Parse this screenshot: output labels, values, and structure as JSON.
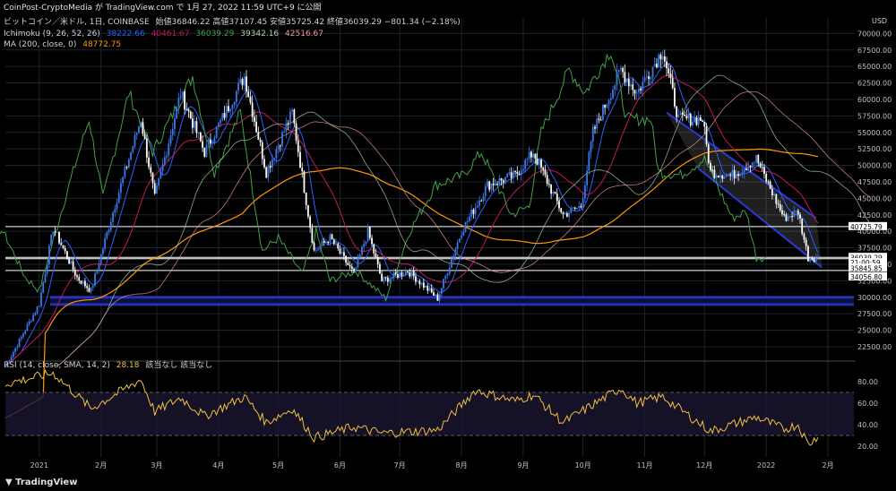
{
  "header": {
    "publisher": "CoinPost-CryptoMedia が TradingView.com で 1月 27, 2022 11:59 UTC+9 に公開"
  },
  "title": {
    "symbol": "ビットコイン／米ドル, 1日, COINBASE",
    "ohlc_label": "始値36846.22 高値37107.45 安値35725.42 終値36039.29 −801.34 (−2.18%)"
  },
  "indicators": {
    "ichimoku": {
      "label": "Ichimoku (9, 26, 52, 26)",
      "values": [
        "38222.66",
        "40461.67",
        "36039.29",
        "39342.16",
        "42516.67"
      ],
      "colors": [
        "#2962ff",
        "#c2185b",
        "#43a047",
        "#a5d6a7",
        "#ef9a9a"
      ]
    },
    "ma": {
      "label": "MA (200, close, 0)",
      "value": "48772.75",
      "color": "#ff9800"
    },
    "rsi": {
      "label": "RSI (14, close, SMA, 14, 2)",
      "value": "28.18",
      "extra": "該当なし  該当なし",
      "color": "#f0c040"
    }
  },
  "price_axis": {
    "currency": "USD",
    "ticks": [
      "70000.00",
      "67500.00",
      "65000.00",
      "62500.00",
      "60000.00",
      "57500.00",
      "55000.00",
      "52500.00",
      "50000.00",
      "47500.00",
      "45000.00",
      "42500.00",
      "40000.00",
      "37500.00",
      "35000.00",
      "32500.00",
      "30000.00",
      "27500.00",
      "25000.00",
      "22500.00"
    ],
    "labels": [
      {
        "text": "40725.79",
        "price": 40725.79,
        "bg": "#ffffff",
        "fg": "#000000"
      },
      {
        "text": "BTCUSD",
        "price": 36039.29,
        "bg": "#ffffff",
        "fg": "#000000"
      },
      {
        "text": "36039.29",
        "price": 36039.29,
        "bg": "#ffffff",
        "fg": "#000000"
      },
      {
        "text": "21:00:59",
        "price": 35250,
        "bg": "#ffffff",
        "fg": "#000000"
      },
      {
        "text": "35845.85",
        "price": 34400,
        "bg": "#ffffff",
        "fg": "#000000"
      },
      {
        "text": "34056.80",
        "price": 33100,
        "bg": "#ffffff",
        "fg": "#000000"
      }
    ]
  },
  "rsi_axis": {
    "ticks": [
      "80.00",
      "60.00",
      "40.00",
      "20.00"
    ]
  },
  "time_axis": {
    "labels": [
      "2021",
      "2月",
      "3月",
      "4月",
      "5月",
      "6月",
      "7月",
      "8月",
      "9月",
      "10月",
      "11月",
      "12月",
      "2022",
      "2月"
    ]
  },
  "footer": {
    "brand": "TradingView"
  },
  "chart_data": {
    "type": "candlestick",
    "timeframe": "1D",
    "ylim": [
      21000,
      71000
    ],
    "rsi_ylim": [
      10,
      95
    ],
    "x_labels": [
      "2021",
      "2月",
      "3月",
      "4月",
      "5月",
      "6月",
      "7月",
      "8月",
      "9月",
      "10月",
      "11月",
      "12月",
      "2022",
      "2月"
    ],
    "close_anchors": [
      {
        "x": "2020-12-15",
        "y": 19500
      },
      {
        "x": "2021-01-01",
        "y": 29000
      },
      {
        "x": "2021-01-08",
        "y": 40500
      },
      {
        "x": "2021-01-20",
        "y": 33000
      },
      {
        "x": "2021-01-27",
        "y": 31000
      },
      {
        "x": "2021-02-08",
        "y": 44000
      },
      {
        "x": "2021-02-21",
        "y": 57000
      },
      {
        "x": "2021-02-28",
        "y": 45000
      },
      {
        "x": "2021-03-13",
        "y": 61000
      },
      {
        "x": "2021-03-25",
        "y": 52000
      },
      {
        "x": "2021-04-14",
        "y": 63500
      },
      {
        "x": "2021-04-25",
        "y": 49000
      },
      {
        "x": "2021-05-08",
        "y": 58000
      },
      {
        "x": "2021-05-19",
        "y": 37000
      },
      {
        "x": "2021-05-27",
        "y": 39000
      },
      {
        "x": "2021-06-08",
        "y": 33500
      },
      {
        "x": "2021-06-15",
        "y": 40000
      },
      {
        "x": "2021-06-22",
        "y": 32500
      },
      {
        "x": "2021-07-05",
        "y": 34000
      },
      {
        "x": "2021-07-20",
        "y": 29800
      },
      {
        "x": "2021-08-01",
        "y": 40000
      },
      {
        "x": "2021-08-14",
        "y": 47000
      },
      {
        "x": "2021-08-28",
        "y": 48500
      },
      {
        "x": "2021-09-06",
        "y": 52000
      },
      {
        "x": "2021-09-21",
        "y": 42500
      },
      {
        "x": "2021-09-30",
        "y": 43800
      },
      {
        "x": "2021-10-06",
        "y": 55000
      },
      {
        "x": "2021-10-20",
        "y": 64500
      },
      {
        "x": "2021-10-28",
        "y": 61000
      },
      {
        "x": "2021-11-10",
        "y": 67500
      },
      {
        "x": "2021-11-18",
        "y": 57000
      },
      {
        "x": "2021-11-30",
        "y": 57000
      },
      {
        "x": "2021-12-04",
        "y": 49000
      },
      {
        "x": "2021-12-15",
        "y": 48500
      },
      {
        "x": "2021-12-27",
        "y": 51000
      },
      {
        "x": "2022-01-10",
        "y": 42000
      },
      {
        "x": "2022-01-17",
        "y": 43000
      },
      {
        "x": "2022-01-22",
        "y": 36000
      },
      {
        "x": "2022-01-27",
        "y": 36039.29
      }
    ],
    "rsi_anchors": [
      {
        "x": "2020-12-15",
        "y": 78
      },
      {
        "x": "2021-01-08",
        "y": 88
      },
      {
        "x": "2021-01-27",
        "y": 55
      },
      {
        "x": "2021-02-21",
        "y": 82
      },
      {
        "x": "2021-02-28",
        "y": 52
      },
      {
        "x": "2021-03-13",
        "y": 65
      },
      {
        "x": "2021-03-25",
        "y": 48
      },
      {
        "x": "2021-04-14",
        "y": 66
      },
      {
        "x": "2021-04-25",
        "y": 42
      },
      {
        "x": "2021-05-08",
        "y": 55
      },
      {
        "x": "2021-05-19",
        "y": 28
      },
      {
        "x": "2021-06-08",
        "y": 38
      },
      {
        "x": "2021-06-22",
        "y": 32
      },
      {
        "x": "2021-07-20",
        "y": 35
      },
      {
        "x": "2021-08-08",
        "y": 72
      },
      {
        "x": "2021-08-28",
        "y": 62
      },
      {
        "x": "2021-09-06",
        "y": 68
      },
      {
        "x": "2021-09-21",
        "y": 42
      },
      {
        "x": "2021-10-20",
        "y": 74
      },
      {
        "x": "2021-10-28",
        "y": 60
      },
      {
        "x": "2021-11-10",
        "y": 66
      },
      {
        "x": "2021-12-04",
        "y": 34
      },
      {
        "x": "2021-12-27",
        "y": 47
      },
      {
        "x": "2022-01-10",
        "y": 36
      },
      {
        "x": "2022-01-17",
        "y": 40
      },
      {
        "x": "2022-01-22",
        "y": 22
      },
      {
        "x": "2022-01-27",
        "y": 28.18
      }
    ],
    "horizontal_levels": [
      {
        "price": 40725.79,
        "color": "#ffffff"
      },
      {
        "price": 36039.29,
        "color": "#ffffff"
      },
      {
        "price": 35845.85,
        "color": "#ffffff"
      },
      {
        "price": 34056.8,
        "color": "#ffffff"
      }
    ],
    "support_zone": {
      "from": 28700,
      "to": 30200,
      "color": "#2a3ad6"
    },
    "descending_channel": {
      "upper": [
        {
          "x": "2021-11-12",
          "y": 58000
        },
        {
          "x": "2022-01-26",
          "y": 42000
        }
      ],
      "lower": [
        {
          "x": "2021-11-28",
          "y": 49500
        },
        {
          "x": "2022-01-29",
          "y": 34500
        }
      ],
      "color": "#2a3ad6"
    },
    "rsi_levels": [
      70,
      30
    ],
    "grid": true
  }
}
